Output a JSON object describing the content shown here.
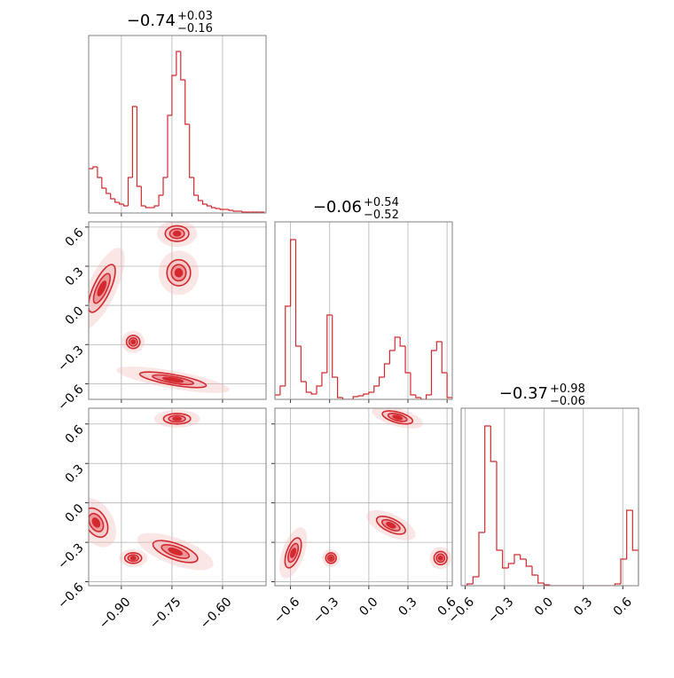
{
  "chart_data": [
    {
      "type": "histogram",
      "color": "#d3292f",
      "title": {
        "main": "−0.74",
        "sup": "+0.03",
        "sub": "−0.16"
      },
      "bins": [
        -0.997,
        -0.984,
        -0.971,
        -0.958,
        -0.945,
        -0.932,
        -0.919,
        -0.906,
        -0.893,
        -0.88,
        -0.867,
        -0.854,
        -0.841,
        -0.828,
        -0.815,
        -0.802,
        -0.789,
        -0.776,
        -0.763,
        -0.75,
        -0.737,
        -0.724,
        -0.711,
        -0.698,
        -0.685,
        -0.672,
        -0.659,
        -0.646,
        -0.633,
        -0.62,
        -0.607,
        -0.594,
        -0.581,
        -0.568,
        -0.555,
        -0.542,
        -0.529,
        -0.516,
        -0.503,
        -0.49,
        -0.477
      ],
      "counts": [
        50,
        52,
        40,
        28,
        22,
        16,
        12,
        10,
        8,
        40,
        120,
        30,
        8,
        6,
        6,
        8,
        20,
        40,
        110,
        155,
        182,
        150,
        100,
        40,
        20,
        14,
        10,
        8,
        6,
        5,
        4,
        4,
        3,
        2,
        2,
        1,
        1,
        1,
        1,
        1
      ],
      "xlim": [
        -0.997,
        -0.471
      ],
      "ylim": [
        0,
        200
      ],
      "xticks": [
        -0.9,
        -0.75,
        -0.6
      ],
      "grid": true
    },
    {
      "type": "contour",
      "color": "#d3292f",
      "xlim": [
        -0.997,
        -0.471
      ],
      "ylim": [
        -0.72,
        0.64
      ],
      "xticks": [
        -0.9,
        -0.75,
        -0.6
      ],
      "yticks": [
        {
          "value": -0.6,
          "label": "−0.6"
        },
        {
          "value": -0.3,
          "label": "−0.3"
        },
        {
          "value": 0,
          "label": "0.0"
        },
        0.3,
        0.6
      ],
      "clusters": [
        {
          "x": -0.735,
          "y": 0.55,
          "rx": 0.035,
          "ry": 0.06,
          "angle": 0
        },
        {
          "x": -0.73,
          "y": 0.25,
          "rx": 0.035,
          "ry": 0.1,
          "angle": 0
        },
        {
          "x": -0.958,
          "y": 0.13,
          "rx": 0.025,
          "ry": 0.2,
          "angle": 25
        },
        {
          "x": -0.865,
          "y": -0.28,
          "rx": 0.02,
          "ry": 0.05,
          "angle": 0
        },
        {
          "x": -0.747,
          "y": -0.57,
          "rx": 0.1,
          "ry": 0.04,
          "angle": 10
        }
      ],
      "grid": true
    },
    {
      "type": "histogram",
      "color": "#d3292f",
      "title": {
        "main": "−0.06",
        "sup": "+0.54",
        "sub": "−0.52"
      },
      "bins": [
        -0.72,
        -0.68,
        -0.64,
        -0.6,
        -0.56,
        -0.52,
        -0.48,
        -0.44,
        -0.4,
        -0.36,
        -0.32,
        -0.28,
        -0.24,
        -0.2,
        -0.16,
        -0.12,
        -0.08,
        -0.04,
        0,
        0.04,
        0.08,
        0.12,
        0.16,
        0.2,
        0.24,
        0.28,
        0.32,
        0.36,
        0.4,
        0.44,
        0.48,
        0.52,
        0.56,
        0.6,
        0.64
      ],
      "counts": [
        5,
        15,
        105,
        180,
        60,
        20,
        8,
        6,
        15,
        30,
        95,
        25,
        2,
        0,
        0,
        3,
        4,
        6,
        8,
        15,
        25,
        40,
        55,
        70,
        60,
        30,
        5,
        2,
        0,
        5,
        55,
        65,
        30,
        2
      ],
      "xlim": [
        -0.72,
        0.64
      ],
      "ylim": [
        0,
        200
      ],
      "xticks": [
        -0.6,
        -0.3,
        0,
        0.3,
        0.6
      ],
      "grid": true
    },
    {
      "type": "contour",
      "color": "#d3292f",
      "xlim": [
        -0.997,
        -0.471
      ],
      "ylim": [
        -0.63,
        0.72
      ],
      "xticks": [
        {
          "value": -0.9,
          "label": "−0.90"
        },
        {
          "value": -0.75,
          "label": "−0.75"
        },
        {
          "value": -0.6,
          "label": "−0.60"
        }
      ],
      "yticks": [
        {
          "value": -0.6,
          "label": "−0.6"
        },
        {
          "value": -0.3,
          "label": "−0.3"
        },
        {
          "value": 0,
          "label": "0.0"
        },
        0.3,
        0.6
      ],
      "clusters": [
        {
          "x": -0.735,
          "y": 0.64,
          "rx": 0.04,
          "ry": 0.04,
          "angle": 0
        },
        {
          "x": -0.975,
          "y": -0.15,
          "rx": 0.03,
          "ry": 0.12,
          "angle": -30
        },
        {
          "x": -0.865,
          "y": -0.42,
          "rx": 0.025,
          "ry": 0.04,
          "angle": 0
        },
        {
          "x": -0.74,
          "y": -0.37,
          "rx": 0.07,
          "ry": 0.06,
          "angle": 20
        }
      ],
      "grid": true
    },
    {
      "type": "contour",
      "color": "#d3292f",
      "xlim": [
        -0.72,
        0.64
      ],
      "ylim": [
        -0.63,
        0.72
      ],
      "xticks": [
        {
          "value": -0.6,
          "label": "−0.6"
        },
        {
          "value": -0.3,
          "label": "−0.3"
        },
        {
          "value": 0,
          "label": "0.0"
        },
        0.3,
        0.6
      ],
      "yticks": [
        -0.6,
        -0.3,
        0,
        0.3,
        0.6
      ],
      "clusters": [
        {
          "x": 0.22,
          "y": 0.65,
          "rx": 0.12,
          "ry": 0.04,
          "angle": 15
        },
        {
          "x": -0.58,
          "y": -0.38,
          "rx": 0.05,
          "ry": 0.12,
          "angle": 20
        },
        {
          "x": -0.29,
          "y": -0.42,
          "rx": 0.04,
          "ry": 0.04,
          "angle": 0
        },
        {
          "x": 0.17,
          "y": -0.17,
          "rx": 0.12,
          "ry": 0.05,
          "angle": 25
        },
        {
          "x": 0.55,
          "y": -0.42,
          "rx": 0.05,
          "ry": 0.05,
          "angle": 0
        }
      ],
      "grid": true
    },
    {
      "type": "histogram",
      "color": "#d3292f",
      "title": {
        "main": "−0.37",
        "sup": "+0.98",
        "sub": "−0.06"
      },
      "bins": [
        -0.63,
        -0.585,
        -0.54,
        -0.495,
        -0.45,
        -0.405,
        -0.36,
        -0.315,
        -0.27,
        -0.225,
        -0.18,
        -0.135,
        -0.09,
        -0.045,
        0,
        0.045,
        0.09,
        0.135,
        0.18,
        0.225,
        0.27,
        0.315,
        0.36,
        0.405,
        0.45,
        0.495,
        0.54,
        0.585,
        0.63,
        0.675,
        0.72
      ],
      "counts": [
        0,
        2,
        10,
        60,
        180,
        140,
        40,
        20,
        25,
        35,
        30,
        22,
        12,
        3,
        1,
        0,
        0,
        0,
        0,
        0,
        0,
        0,
        0,
        0,
        0,
        0,
        2,
        30,
        85,
        40
      ],
      "xlim": [
        -0.63,
        0.72
      ],
      "ylim": [
        0,
        200
      ],
      "xticks": [
        {
          "value": -0.6,
          "label": "−0.6"
        },
        {
          "value": -0.3,
          "label": "−0.3"
        },
        {
          "value": 0,
          "label": "0.0"
        },
        0.3,
        0.6
      ],
      "grid": true
    }
  ]
}
